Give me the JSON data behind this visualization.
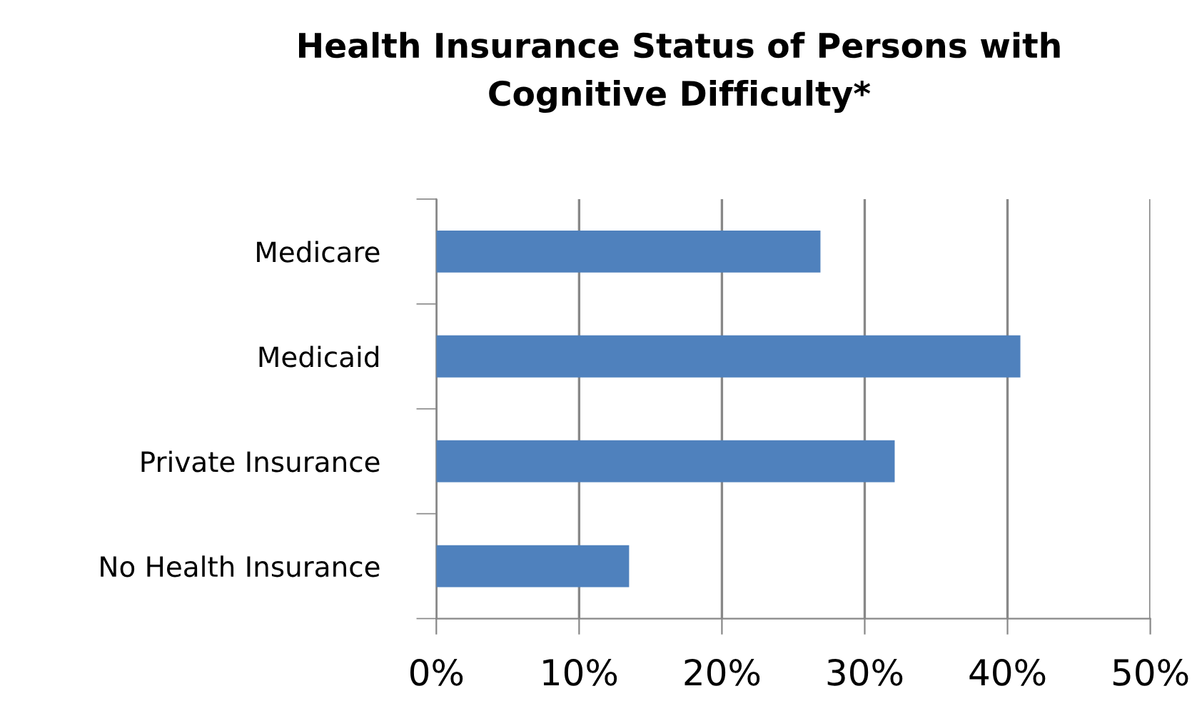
{
  "chart_data": {
    "type": "bar",
    "orientation": "horizontal",
    "title": "Health Insurance Status of Persons with\nCognitive Difficulty*",
    "categories": [
      "Medicare",
      "Medicaid",
      "Private Insurance",
      "No Health Insurance"
    ],
    "values": [
      26.9,
      40.9,
      32.1,
      13.5
    ],
    "color": "#4f81bd",
    "xlim": [
      0,
      50
    ],
    "xticks": [
      {
        "value": 0,
        "label": "0%"
      },
      {
        "value": 10,
        "label": "10%"
      },
      {
        "value": 20,
        "label": "20%"
      },
      {
        "value": 30,
        "label": "30%"
      },
      {
        "value": 40,
        "label": "40%"
      },
      {
        "value": 50,
        "label": "50%"
      }
    ],
    "grid": "x",
    "legend": false
  }
}
